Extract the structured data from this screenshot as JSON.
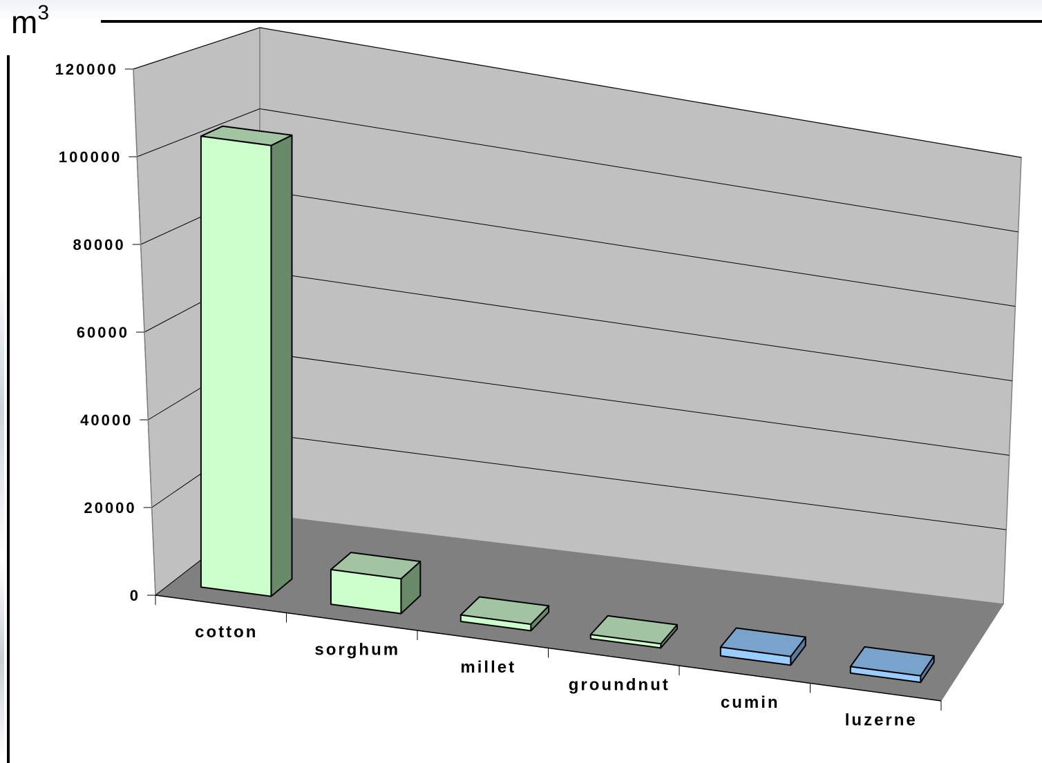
{
  "unit": {
    "base": "m",
    "exponent": "3"
  },
  "chart_data": {
    "type": "bar",
    "style": "3d-column",
    "categories": [
      "cotton",
      "sorghum",
      "millet",
      "groundnut",
      "cumin",
      "luzerne"
    ],
    "values": [
      104000,
      8000,
      1500,
      100,
      2000,
      1500
    ],
    "ylim": [
      0,
      120000
    ],
    "yticks": [
      0,
      20000,
      40000,
      60000,
      80000,
      100000,
      120000
    ],
    "ytick_labels": [
      "0",
      "20000",
      "40000",
      "60000",
      "80000",
      "100000",
      "120000"
    ],
    "grid": true,
    "colors": {
      "green_front": "#ccffcc",
      "green_top": "#a3c4a3",
      "green_side": "#688a68",
      "blue_front": "#99ccff",
      "blue_top": "#7aa3cc",
      "blue_side": "#5c7a99",
      "wall": "#c0c0c0",
      "floor": "#808080"
    },
    "bar_color_groups": [
      "green",
      "green",
      "green",
      "green",
      "blue",
      "blue"
    ]
  }
}
